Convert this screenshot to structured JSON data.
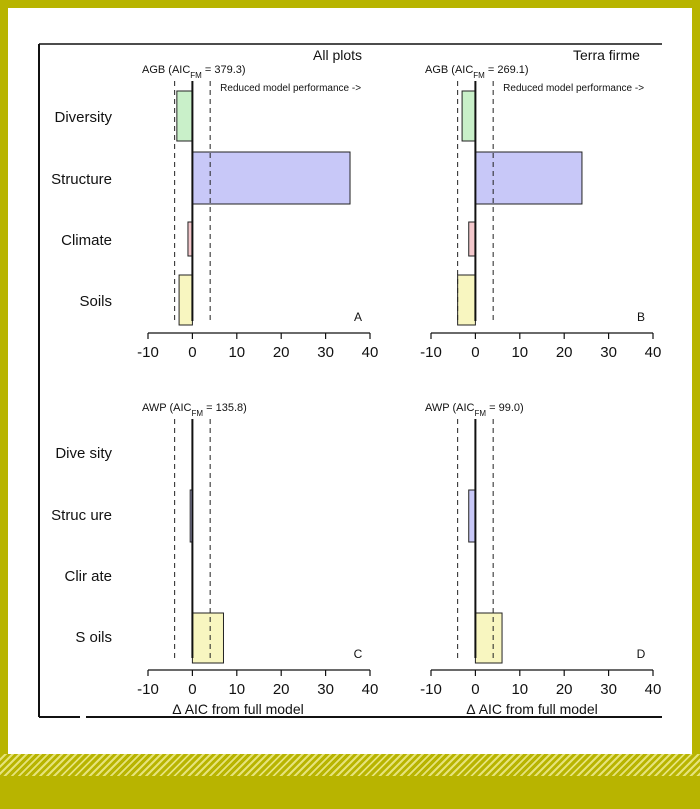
{
  "headers": {
    "left": "All plots",
    "right": "Terra firme"
  },
  "row_labels_top": [
    "Diversity",
    "Structure",
    "Climate",
    "Soils"
  ],
  "row_labels_bottom": [
    "Dive sity",
    "Struc ure",
    "Clir ate",
    "S oils"
  ],
  "xlabel": "Δ AIC from full model",
  "note": "Reduced model performance ->",
  "colors": {
    "diversity": "#c9f0c9",
    "structure": "#c8c8f8",
    "climate": "#f4c8cc",
    "soils": "#f8f6c0",
    "background": "#b8b400"
  },
  "chart_data": [
    {
      "type": "bar",
      "orientation": "horizontal",
      "panel": "A",
      "title_pre": "AGB (AIC",
      "title_sub": "FM",
      "title_post": " = 379.3)",
      "categories": [
        "Diversity",
        "Structure",
        "Climate",
        "Soils"
      ],
      "values": [
        -3.5,
        35.5,
        -1,
        -3
      ],
      "xlim": [
        -10,
        40
      ],
      "ticks": [
        -10,
        0,
        10,
        20,
        30,
        40
      ],
      "threshold_lines": [
        -4,
        4
      ],
      "show_note": true,
      "show_xlabel": false
    },
    {
      "type": "bar",
      "orientation": "horizontal",
      "panel": "B",
      "title_pre": "AGB (AIC",
      "title_sub": "FM",
      "title_post": " = 269.1)",
      "categories": [
        "Diversity",
        "Structure",
        "Climate",
        "Soils"
      ],
      "values": [
        -3,
        24,
        -1.5,
        -4
      ],
      "xlim": [
        -10,
        40
      ],
      "ticks": [
        -10,
        0,
        10,
        20,
        30,
        40
      ],
      "threshold_lines": [
        -4,
        4
      ],
      "show_note": true,
      "show_xlabel": false
    },
    {
      "type": "bar",
      "orientation": "horizontal",
      "panel": "C",
      "title_pre": "AWP (AIC",
      "title_sub": "FM",
      "title_post": " = 135.8)",
      "categories": [
        "Diversity",
        "Structure",
        "Climate",
        "Soils"
      ],
      "values": [
        0,
        -0.5,
        0,
        7
      ],
      "xlim": [
        -10,
        40
      ],
      "ticks": [
        -10,
        0,
        10,
        20,
        30,
        40
      ],
      "threshold_lines": [
        -4,
        4
      ],
      "show_note": false,
      "show_xlabel": true
    },
    {
      "type": "bar",
      "orientation": "horizontal",
      "panel": "D",
      "title_pre": "AWP (AIC",
      "title_sub": "FM",
      "title_post": " = 99.0)",
      "categories": [
        "Diversity",
        "Structure",
        "Climate",
        "Soils"
      ],
      "values": [
        0,
        -1.5,
        0,
        6
      ],
      "xlim": [
        -10,
        40
      ],
      "ticks": [
        -10,
        0,
        10,
        20,
        30,
        40
      ],
      "threshold_lines": [
        -4,
        4
      ],
      "show_note": false,
      "show_xlabel": true
    }
  ]
}
